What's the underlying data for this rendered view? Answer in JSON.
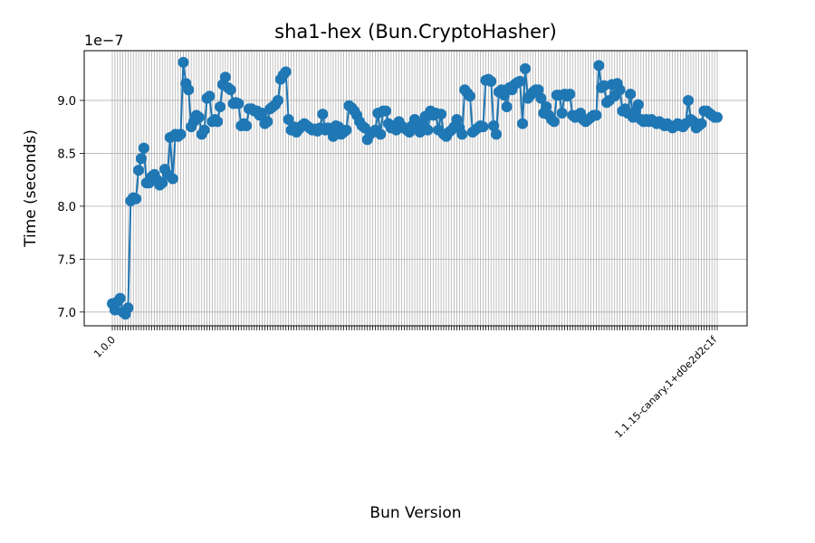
{
  "chart_data": {
    "type": "line",
    "title": "sha1-hex (Bun.CryptoHasher)",
    "xlabel": "Bun Version",
    "ylabel": "Time (seconds)",
    "y_offset_label": "1e−7",
    "y_scale_factor": 1e-07,
    "ylim": [
      6.87,
      9.47
    ],
    "yticks": [
      7.0,
      7.5,
      8.0,
      8.5,
      9.0
    ],
    "ytick_labels": [
      "7.0",
      "7.5",
      "8.0",
      "8.5",
      "9.0"
    ],
    "grid": true,
    "legend": "none",
    "marker": "circle",
    "color": "#1f77b4",
    "x_categories_visible_note_free": true,
    "first_tick_label": "1.0.0",
    "last_tick_label": "1.1.15-canary.1+d0e2d2c1f",
    "y": [
      7.08,
      7.02,
      7.1,
      7.13,
      7.0,
      6.98,
      7.04,
      8.05,
      8.08,
      8.07,
      8.34,
      8.45,
      8.55,
      8.22,
      8.22,
      8.28,
      8.3,
      8.25,
      8.2,
      8.22,
      8.35,
      8.3,
      8.65,
      8.26,
      8.68,
      8.66,
      8.68,
      9.36,
      9.16,
      9.1,
      8.75,
      8.8,
      8.86,
      8.84,
      8.68,
      8.72,
      9.02,
      9.04,
      8.8,
      8.82,
      8.8,
      8.94,
      9.15,
      9.22,
      9.12,
      9.1,
      8.97,
      8.98,
      8.97,
      8.76,
      8.78,
      8.76,
      8.92,
      8.92,
      8.9,
      8.9,
      8.86,
      8.88,
      8.78,
      8.8,
      8.92,
      8.94,
      8.96,
      9.0,
      9.2,
      9.24,
      9.27,
      8.82,
      8.72,
      8.75,
      8.7,
      8.73,
      8.76,
      8.78,
      8.76,
      8.74,
      8.72,
      8.73,
      8.71,
      8.74,
      8.87,
      8.72,
      8.74,
      8.72,
      8.66,
      8.76,
      8.75,
      8.68,
      8.7,
      8.72,
      8.95,
      8.93,
      8.9,
      8.86,
      8.8,
      8.76,
      8.74,
      8.63,
      8.68,
      8.7,
      8.72,
      8.88,
      8.68,
      8.9,
      8.9,
      8.78,
      8.74,
      8.76,
      8.72,
      8.8,
      8.76,
      8.74,
      8.72,
      8.7,
      8.76,
      8.82,
      8.74,
      8.7,
      8.78,
      8.85,
      8.72,
      8.9,
      8.86,
      8.88,
      8.72,
      8.87,
      8.68,
      8.66,
      8.7,
      8.72,
      8.75,
      8.82,
      8.74,
      8.68,
      9.1,
      9.07,
      9.04,
      8.7,
      8.72,
      8.74,
      8.76,
      8.75,
      9.19,
      9.2,
      9.18,
      8.76,
      8.68,
      9.08,
      9.1,
      9.05,
      8.94,
      9.12,
      9.1,
      9.15,
      9.17,
      9.18,
      8.78,
      9.3,
      9.02,
      9.05,
      9.08,
      9.1,
      9.1,
      9.02,
      8.88,
      8.94,
      8.86,
      8.82,
      8.8,
      9.05,
      9.05,
      8.88,
      9.06,
      9.04,
      9.06,
      8.86,
      8.84,
      8.86,
      8.88,
      8.82,
      8.8,
      8.82,
      8.84,
      8.86,
      8.86,
      9.33,
      9.12,
      9.14,
      8.98,
      9.0,
      9.15,
      9.04,
      9.16,
      9.1,
      8.9,
      8.92,
      8.88,
      9.06,
      8.84,
      8.9,
      8.96,
      8.82,
      8.8,
      8.82,
      8.8,
      8.82,
      8.8,
      8.78,
      8.8,
      8.78,
      8.76,
      8.78,
      8.76,
      8.74,
      8.76,
      8.78,
      8.76,
      8.75,
      8.78,
      9.0,
      8.82,
      8.8,
      8.74,
      8.76,
      8.78,
      8.9,
      8.9,
      8.88,
      8.86,
      8.84,
      8.84
    ]
  }
}
